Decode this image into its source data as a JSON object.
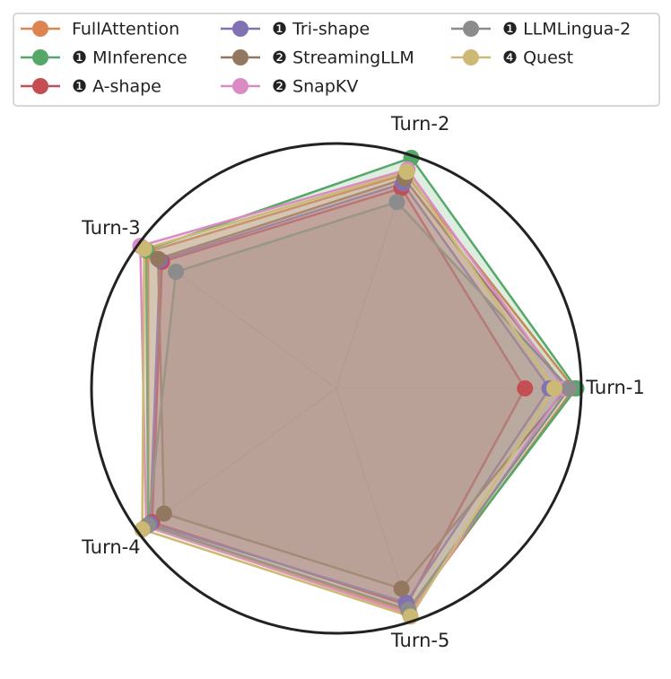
{
  "chart_data": {
    "type": "radar",
    "categories": [
      "Turn-1",
      "Turn-2",
      "Turn-3",
      "Turn-4",
      "Turn-5"
    ],
    "ylim": [
      0,
      1
    ],
    "grid": true,
    "series": [
      {
        "name": "FullAttention",
        "color": "#dd8452",
        "values": [
          0.97,
          0.92,
          0.95,
          0.95,
          0.96
        ]
      },
      {
        "name": "❶ MInference",
        "color": "#55a868",
        "values": [
          0.98,
          0.99,
          0.96,
          0.95,
          0.95
        ]
      },
      {
        "name": "❶ A-shape",
        "color": "#c44e52",
        "values": [
          0.77,
          0.86,
          0.88,
          0.93,
          0.93
        ]
      },
      {
        "name": "❶ Tri-shape",
        "color": "#8172b3",
        "values": [
          0.87,
          0.88,
          0.89,
          0.94,
          0.92
        ]
      },
      {
        "name": "❷ StreamingLLM",
        "color": "#937860",
        "values": [
          0.94,
          0.9,
          0.9,
          0.87,
          0.86
        ]
      },
      {
        "name": "❷ SnapKV",
        "color": "#da8bc3",
        "values": [
          0.93,
          0.94,
          0.99,
          0.96,
          0.97
        ]
      },
      {
        "name": "❶ LLMLingua-2",
        "color": "#8c8c8c",
        "values": [
          0.95,
          0.8,
          0.81,
          0.95,
          0.95
        ]
      },
      {
        "name": "❹ Quest",
        "color": "#ccb974",
        "values": [
          0.89,
          0.93,
          0.97,
          0.98,
          0.98
        ]
      }
    ]
  }
}
